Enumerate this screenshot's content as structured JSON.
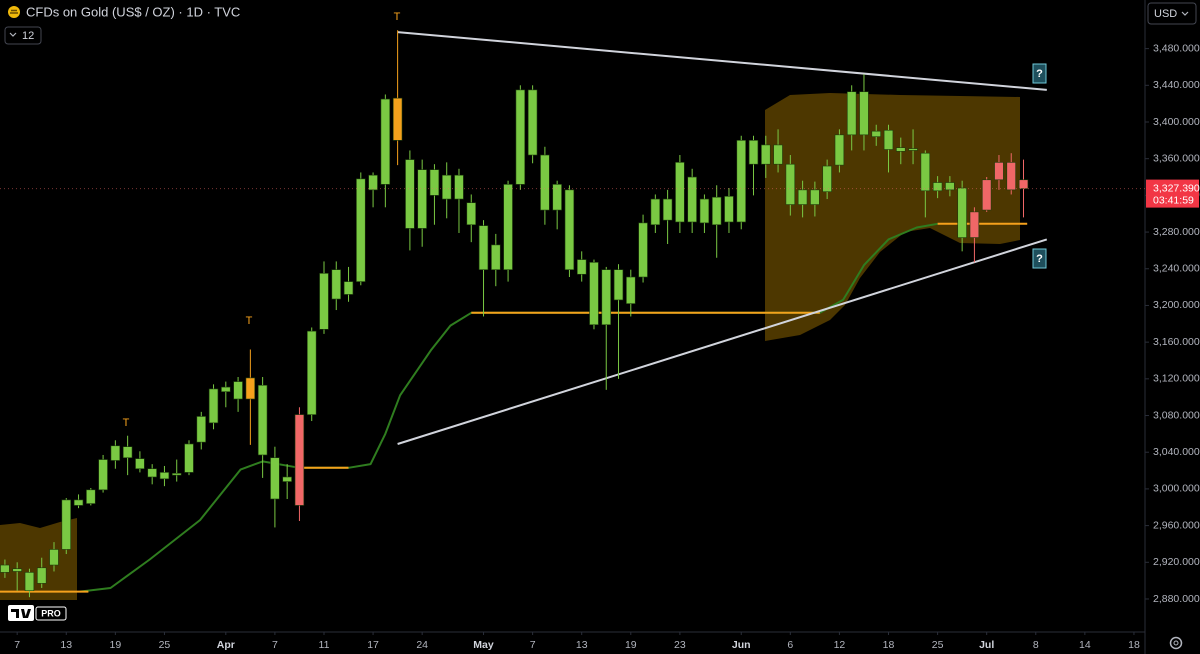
{
  "header": {
    "title": "CFDs on Gold (US$ / OZ) · 1D · TVC",
    "interval_badge": "12",
    "currency": "USD",
    "logo_badge": "PRO"
  },
  "price_tag": {
    "value": "3,327.390",
    "countdown": "03:41:59"
  },
  "chart_data": {
    "type": "candlestick",
    "open": [
      2909,
      2913,
      2889,
      2897,
      2917,
      2934,
      2982,
      2984,
      2999,
      3031,
      3034,
      3033,
      3013,
      3011,
      3015,
      3018,
      3051,
      3072,
      3106,
      3098,
      3121,
      3037,
      2989,
      3013,
      2982,
      3081,
      3174,
      3207,
      3212,
      3226,
      3326,
      3332,
      3426,
      3284,
      3284,
      3320,
      3316,
      3316,
      3288,
      3239,
      3239,
      3239,
      3332,
      3364,
      3304,
      3304,
      3239,
      3234,
      3179,
      3179,
      3206,
      3202,
      3231,
      3288,
      3293,
      3291,
      3291,
      3290,
      3288,
      3291,
      3291,
      3354,
      3354,
      3354,
      3310,
      3310,
      3310,
      3324,
      3353,
      3386,
      3386,
      3384,
      3370,
      3368,
      3369,
      3325,
      3325,
      3326,
      3274,
      3302,
      3304,
      3337,
      3356,
      3337
    ],
    "high": [
      2923,
      2920,
      2913,
      2925,
      2942,
      2990,
      2994,
      3001,
      3037,
      3053,
      3058,
      3041,
      3027,
      3025,
      3032,
      3053,
      3084,
      3114,
      3117,
      3122,
      3152,
      3122,
      3046,
      3027,
      3089,
      3176,
      3248,
      3248,
      3242,
      3345,
      3345,
      3430,
      3500,
      3369,
      3359,
      3354,
      3356,
      3349,
      3321,
      3293,
      3278,
      3336,
      3440,
      3440,
      3373,
      3336,
      3331,
      3259,
      3250,
      3242,
      3245,
      3239,
      3299,
      3321,
      3326,
      3364,
      3349,
      3321,
      3331,
      3328,
      3385,
      3385,
      3385,
      3392,
      3364,
      3336,
      3335,
      3359,
      3392,
      3440,
      3452,
      3397,
      3397,
      3383,
      3392,
      3369,
      3341,
      3341,
      3336,
      3307,
      3340,
      3364,
      3366,
      3359
    ],
    "low": [
      2903,
      2889,
      2882,
      2892,
      2910,
      2929,
      2979,
      2982,
      2996,
      3022,
      3015,
      3018,
      3005,
      3003,
      3008,
      3015,
      3043,
      3065,
      3089,
      3084,
      3048,
      3012,
      2958,
      2989,
      2965,
      3074,
      3169,
      3195,
      3204,
      3222,
      3307,
      3307,
      3353,
      3260,
      3264,
      3288,
      3295,
      3279,
      3269,
      3188,
      3221,
      3226,
      3326,
      3355,
      3288,
      3283,
      3231,
      3226,
      3174,
      3108,
      3120,
      3188,
      3225,
      3279,
      3267,
      3279,
      3279,
      3279,
      3252,
      3279,
      3283,
      3320,
      3339,
      3345,
      3298,
      3296,
      3297,
      3316,
      3345,
      3369,
      3369,
      3374,
      3345,
      3354,
      3354,
      3296,
      3317,
      3319,
      3259,
      3247,
      3302,
      3326,
      3321,
      3296
    ],
    "close": [
      2917,
      2910,
      2909,
      2914,
      2934,
      2988,
      2988,
      2999,
      3032,
      3047,
      3046,
      3022,
      3022,
      3018,
      3017,
      3049,
      3079,
      3109,
      3111,
      3117,
      3098,
      3113,
      3034,
      3008,
      3081,
      3172,
      3235,
      3239,
      3226,
      3338,
      3342,
      3425,
      3380,
      3359,
      3348,
      3348,
      3342,
      3342,
      3312,
      3287,
      3266,
      3332,
      3435,
      3435,
      3364,
      3332,
      3326,
      3250,
      3247,
      3239,
      3239,
      3231,
      3290,
      3316,
      3316,
      3356,
      3340,
      3316,
      3318,
      3319,
      3380,
      3380,
      3375,
      3375,
      3354,
      3326,
      3326,
      3352,
      3386,
      3433,
      3433,
      3390,
      3391,
      3372,
      3371,
      3366,
      3334,
      3334,
      3328,
      3274,
      3337,
      3356,
      3326,
      3327.39
    ],
    "colors": [
      "#7ac943",
      "#7ac943",
      "#7ac943",
      "#7ac943",
      "#7ac943",
      "#7ac943",
      "#7ac943",
      "#7ac943",
      "#7ac943",
      "#7ac943",
      "#7ac943",
      "#7ac943",
      "#7ac943",
      "#7ac943",
      "#7ac943",
      "#7ac943",
      "#7ac943",
      "#7ac943",
      "#7ac943",
      "#7ac943",
      "#f5a11c",
      "#7ac943",
      "#7ac943",
      "#7ac943",
      "#f06767",
      "#7ac943",
      "#7ac943",
      "#7ac943",
      "#7ac943",
      "#7ac943",
      "#7ac943",
      "#7ac943",
      "#f5a11c",
      "#7ac943",
      "#7ac943",
      "#7ac943",
      "#7ac943",
      "#7ac943",
      "#7ac943",
      "#7ac943",
      "#7ac943",
      "#7ac943",
      "#7ac943",
      "#7ac943",
      "#7ac943",
      "#7ac943",
      "#7ac943",
      "#7ac943",
      "#7ac943",
      "#7ac943",
      "#7ac943",
      "#7ac943",
      "#7ac943",
      "#7ac943",
      "#7ac943",
      "#7ac943",
      "#7ac943",
      "#7ac943",
      "#7ac943",
      "#7ac943",
      "#7ac943",
      "#7ac943",
      "#7ac943",
      "#7ac943",
      "#7ac943",
      "#7ac943",
      "#7ac943",
      "#7ac943",
      "#7ac943",
      "#7ac943",
      "#7ac943",
      "#7ac943",
      "#7ac943",
      "#7ac943",
      "#7ac943",
      "#7ac943",
      "#7ac943",
      "#7ac943",
      "#7ac943",
      "#f06767",
      "#f06767",
      "#f06767",
      "#f06767",
      "#f06767"
    ],
    "overlays": [
      {
        "type": "line",
        "color": "#2f7d1f",
        "x": [
          6.1,
          8.6,
          11.8,
          15.9,
          19.2,
          21,
          24,
          28,
          29.8,
          31,
          32.2,
          34.7,
          36.3,
          38,
          66.4,
          68.3,
          70,
          72,
          74.3,
          76
        ],
        "values": [
          2888,
          2892,
          2923,
          2966,
          3021,
          3030,
          3023,
          3023,
          3027,
          3060,
          3102,
          3151,
          3178,
          3192,
          3192,
          3206,
          3244,
          3272,
          3285,
          3289
        ]
      },
      {
        "type": "line",
        "color": "#f5a11c",
        "x": [
          -0.4,
          6.8
        ],
        "values": [
          2888,
          2888
        ]
      },
      {
        "type": "line",
        "color": "#f5a11c",
        "x": [
          24.2,
          28
        ],
        "values": [
          3023,
          3023
        ]
      },
      {
        "type": "line",
        "color": "#f5a11c",
        "x": [
          38,
          66.4
        ],
        "values": [
          3192,
          3192
        ]
      },
      {
        "type": "line",
        "color": "#f5a11c",
        "x": [
          76,
          83.3
        ],
        "values": [
          3289,
          3289
        ]
      },
      {
        "type": "line",
        "color": "#d1d4dc",
        "x": [
          32,
          84.9
        ],
        "values": [
          3498,
          3435
        ]
      },
      {
        "type": "line",
        "color": "#d1d4dc",
        "x": [
          32,
          84.9
        ],
        "values": [
          3049,
          3272
        ]
      }
    ],
    "annotations": [
      "T",
      "T",
      "T",
      "?",
      "?"
    ],
    "xlim": [
      -0.4,
      92.9
    ],
    "xticks": [
      {
        "value": 1,
        "label": "7"
      },
      {
        "value": 5,
        "label": "13"
      },
      {
        "value": 9,
        "label": "19"
      },
      {
        "value": 13,
        "label": "25"
      },
      {
        "value": 18,
        "label": "Apr"
      },
      {
        "value": 22,
        "label": "7"
      },
      {
        "value": 26,
        "label": "11"
      },
      {
        "value": 30,
        "label": "17"
      },
      {
        "value": 34,
        "label": "24"
      },
      {
        "value": 39,
        "label": "May"
      },
      {
        "value": 43,
        "label": "7"
      },
      {
        "value": 47,
        "label": "13"
      },
      {
        "value": 51,
        "label": "19"
      },
      {
        "value": 55,
        "label": "23"
      },
      {
        "value": 60,
        "label": "Jun"
      },
      {
        "value": 64,
        "label": "6"
      },
      {
        "value": 68,
        "label": "12"
      },
      {
        "value": 72,
        "label": "18"
      },
      {
        "value": 76,
        "label": "25"
      },
      {
        "value": 80,
        "label": "Jul"
      },
      {
        "value": 84,
        "label": "8"
      },
      {
        "value": 88,
        "label": "14"
      },
      {
        "value": 92,
        "label": "18"
      }
    ],
    "ylim": [
      2844,
      3533
    ],
    "yticks": [
      {
        "value": 2880,
        "label": "2,880.000"
      },
      {
        "value": 2920,
        "label": "2,920.000"
      },
      {
        "value": 2960,
        "label": "2,960.000"
      },
      {
        "value": 3000,
        "label": "3,000.000"
      },
      {
        "value": 3040,
        "label": "3,040.000"
      },
      {
        "value": 3080,
        "label": "3,080.000"
      },
      {
        "value": 3120,
        "label": "3,120.000"
      },
      {
        "value": 3160,
        "label": "3,160.000"
      },
      {
        "value": 3200,
        "label": "3,200.000"
      },
      {
        "value": 3240,
        "label": "3,240.000"
      },
      {
        "value": 3280,
        "label": "3,280.000"
      },
      {
        "value": 3320,
        "label": "3,320.000"
      },
      {
        "value": 3360,
        "label": "3,360.000"
      },
      {
        "value": 3400,
        "label": "3,400.000"
      },
      {
        "value": 3440,
        "label": "3,440.000"
      },
      {
        "value": 3480,
        "label": "3,480.000"
      }
    ],
    "grid": false
  }
}
